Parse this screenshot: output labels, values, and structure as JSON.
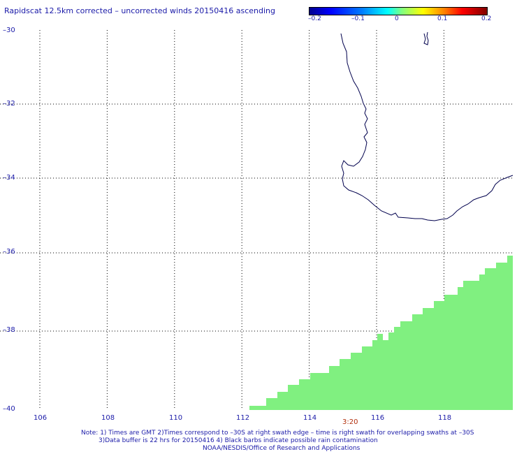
{
  "title": "Rapidscat 12.5km corrected – uncorrected winds 20150416 ascending",
  "colorbar": {
    "ticks": [
      "–0.2",
      "–0.1",
      "0",
      "0.1",
      "0.2"
    ],
    "range": [
      -0.2,
      0.2
    ],
    "colors": [
      "#00008f",
      "#0000ff",
      "#00ffff",
      "#ffff00",
      "#ff0000",
      "#800000"
    ]
  },
  "map": {
    "lon_range": [
      105,
      120
    ],
    "lat_range": [
      -40,
      -30
    ],
    "lon_ticks": [
      "106",
      "108",
      "110",
      "112",
      "114",
      "116",
      "118"
    ],
    "lat_ticks": [
      "–30",
      "–32",
      "–34",
      "–36",
      "–38",
      "–40"
    ],
    "coastline_color": "#00004d",
    "swath_color": "#80f080",
    "grid": "dotted"
  },
  "swath_time": "3:20",
  "notes": {
    "line1": "Note: 1) Times are GMT 2)Times correspond to –30S at right swath edge – time is right swath for overlapping swaths at –30S",
    "line2": "3)Data buffer is 22 hrs for 20150416 4) Black barbs indicate possible rain contamination",
    "line3": "NOAA/NESDIS/Office of Research and Applications"
  }
}
